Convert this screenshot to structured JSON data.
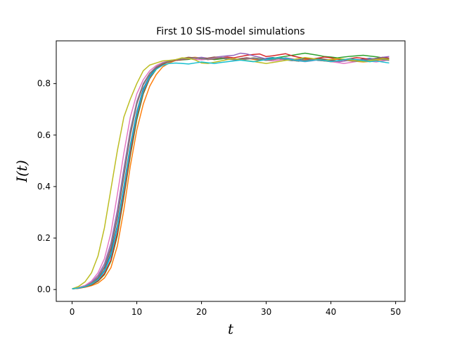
{
  "chart_data": {
    "type": "line",
    "title": "First 10 SIS-model simulations",
    "xlabel": "t",
    "ylabel": "I(t)",
    "xlim": [
      -2.45,
      51.45
    ],
    "ylim": [
      -0.046,
      0.966
    ],
    "xticks": [
      0,
      10,
      20,
      30,
      40,
      50
    ],
    "xtick_labels": [
      "0",
      "10",
      "20",
      "30",
      "40",
      "50"
    ],
    "yticks": [
      0.0,
      0.2,
      0.4,
      0.6,
      0.8
    ],
    "ytick_labels": [
      "0.0",
      "0.2",
      "0.4",
      "0.6",
      "0.8"
    ],
    "grid": false,
    "legend": "none",
    "x": [
      0,
      1,
      2,
      3,
      4,
      5,
      6,
      7,
      8,
      9,
      10,
      11,
      12,
      13,
      14,
      15,
      16,
      17,
      18,
      19,
      20,
      21,
      22,
      23,
      24,
      25,
      26,
      27,
      28,
      29,
      30,
      31,
      32,
      33,
      34,
      35,
      36,
      37,
      38,
      39,
      40,
      41,
      42,
      43,
      44,
      45,
      46,
      47,
      48,
      49
    ],
    "series": [
      {
        "color": "#1f77b4",
        "values": [
          0.003,
          0.006,
          0.012,
          0.022,
          0.04,
          0.075,
          0.14,
          0.25,
          0.4,
          0.56,
          0.69,
          0.78,
          0.83,
          0.86,
          0.875,
          0.885,
          0.89,
          0.893,
          0.895,
          0.897,
          0.9,
          0.898,
          0.902,
          0.899,
          0.895,
          0.893,
          0.897,
          0.9,
          0.896,
          0.894,
          0.898,
          0.901,
          0.897,
          0.892,
          0.889,
          0.893,
          0.897,
          0.895,
          0.89,
          0.888,
          0.892,
          0.896,
          0.893,
          0.889,
          0.891,
          0.895,
          0.898,
          0.894,
          0.892,
          0.896
        ]
      },
      {
        "color": "#ff7f0e",
        "values": [
          0.003,
          0.005,
          0.009,
          0.015,
          0.025,
          0.045,
          0.085,
          0.17,
          0.31,
          0.48,
          0.62,
          0.72,
          0.79,
          0.835,
          0.865,
          0.88,
          0.89,
          0.895,
          0.9,
          0.902,
          0.899,
          0.895,
          0.898,
          0.902,
          0.897,
          0.893,
          0.896,
          0.899,
          0.894,
          0.89,
          0.893,
          0.897,
          0.9,
          0.896,
          0.892,
          0.889,
          0.893,
          0.896,
          0.892,
          0.888,
          0.891,
          0.895,
          0.892,
          0.888,
          0.886,
          0.884,
          0.886,
          0.89,
          0.893,
          0.891
        ]
      },
      {
        "color": "#2ca02c",
        "values": [
          0.003,
          0.005,
          0.01,
          0.018,
          0.032,
          0.058,
          0.11,
          0.21,
          0.36,
          0.52,
          0.66,
          0.76,
          0.82,
          0.855,
          0.875,
          0.885,
          0.89,
          0.892,
          0.894,
          0.898,
          0.901,
          0.897,
          0.893,
          0.896,
          0.899,
          0.895,
          0.892,
          0.896,
          0.9,
          0.897,
          0.894,
          0.898,
          0.902,
          0.906,
          0.91,
          0.914,
          0.918,
          0.914,
          0.91,
          0.905,
          0.903,
          0.9,
          0.903,
          0.906,
          0.908,
          0.91,
          0.907,
          0.904,
          0.9,
          0.898
        ]
      },
      {
        "color": "#d62728",
        "values": [
          0.003,
          0.005,
          0.01,
          0.019,
          0.034,
          0.062,
          0.115,
          0.22,
          0.37,
          0.53,
          0.67,
          0.765,
          0.822,
          0.857,
          0.876,
          0.886,
          0.89,
          0.893,
          0.896,
          0.899,
          0.897,
          0.893,
          0.896,
          0.9,
          0.903,
          0.9,
          0.905,
          0.91,
          0.913,
          0.915,
          0.905,
          0.908,
          0.912,
          0.916,
          0.908,
          0.902,
          0.898,
          0.895,
          0.899,
          0.903,
          0.9,
          0.896,
          0.893,
          0.897,
          0.901,
          0.898,
          0.894,
          0.898,
          0.902,
          0.899
        ]
      },
      {
        "color": "#9467bd",
        "values": [
          0.003,
          0.007,
          0.014,
          0.028,
          0.055,
          0.1,
          0.18,
          0.31,
          0.47,
          0.62,
          0.73,
          0.8,
          0.84,
          0.865,
          0.88,
          0.888,
          0.893,
          0.895,
          0.897,
          0.899,
          0.902,
          0.898,
          0.902,
          0.905,
          0.908,
          0.91,
          0.918,
          0.915,
          0.908,
          0.902,
          0.896,
          0.893,
          0.897,
          0.9,
          0.896,
          0.892,
          0.888,
          0.891,
          0.895,
          0.892,
          0.888,
          0.884,
          0.887,
          0.891,
          0.894,
          0.891,
          0.895,
          0.898,
          0.902,
          0.905
        ]
      },
      {
        "color": "#8c564b",
        "values": [
          0.003,
          0.006,
          0.012,
          0.024,
          0.045,
          0.085,
          0.155,
          0.28,
          0.44,
          0.6,
          0.72,
          0.795,
          0.838,
          0.863,
          0.878,
          0.887,
          0.893,
          0.898,
          0.902,
          0.9,
          0.896,
          0.899,
          0.903,
          0.9,
          0.897,
          0.893,
          0.896,
          0.9,
          0.897,
          0.893,
          0.89,
          0.894,
          0.898,
          0.895,
          0.891,
          0.887,
          0.89,
          0.894,
          0.898,
          0.895,
          0.891,
          0.888,
          0.892,
          0.896,
          0.893,
          0.89,
          0.893,
          0.897,
          0.9,
          0.897
        ]
      },
      {
        "color": "#e377c2",
        "values": [
          0.003,
          0.008,
          0.016,
          0.033,
          0.065,
          0.12,
          0.22,
          0.37,
          0.53,
          0.67,
          0.76,
          0.815,
          0.85,
          0.87,
          0.882,
          0.889,
          0.893,
          0.896,
          0.898,
          0.895,
          0.892,
          0.895,
          0.899,
          0.902,
          0.898,
          0.895,
          0.892,
          0.896,
          0.899,
          0.895,
          0.891,
          0.888,
          0.891,
          0.895,
          0.892,
          0.888,
          0.885,
          0.888,
          0.892,
          0.889,
          0.885,
          0.882,
          0.878,
          0.882,
          0.886,
          0.89,
          0.887,
          0.884,
          0.888,
          0.892
        ]
      },
      {
        "color": "#7f7f7f",
        "values": [
          0.003,
          0.006,
          0.013,
          0.025,
          0.048,
          0.09,
          0.165,
          0.29,
          0.45,
          0.61,
          0.725,
          0.798,
          0.84,
          0.864,
          0.879,
          0.887,
          0.892,
          0.895,
          0.897,
          0.9,
          0.897,
          0.894,
          0.897,
          0.901,
          0.898,
          0.894,
          0.891,
          0.895,
          0.898,
          0.894,
          0.89,
          0.893,
          0.897,
          0.894,
          0.89,
          0.887,
          0.89,
          0.894,
          0.891,
          0.888,
          0.885,
          0.888,
          0.892,
          0.889,
          0.886,
          0.889,
          0.893,
          0.896,
          0.893,
          0.89
        ]
      },
      {
        "color": "#bcbd22",
        "values": [
          0.003,
          0.012,
          0.03,
          0.065,
          0.13,
          0.24,
          0.39,
          0.54,
          0.67,
          0.74,
          0.8,
          0.85,
          0.872,
          0.88,
          0.888,
          0.89,
          0.893,
          0.9,
          0.898,
          0.892,
          0.88,
          0.878,
          0.883,
          0.888,
          0.893,
          0.897,
          0.893,
          0.889,
          0.886,
          0.882,
          0.878,
          0.882,
          0.886,
          0.89,
          0.893,
          0.897,
          0.901,
          0.898,
          0.894,
          0.89,
          0.894,
          0.898,
          0.895,
          0.891,
          0.888,
          0.885,
          0.889,
          0.893,
          0.897,
          0.894
        ]
      },
      {
        "color": "#17becf",
        "values": [
          0.003,
          0.006,
          0.011,
          0.021,
          0.038,
          0.07,
          0.13,
          0.24,
          0.39,
          0.55,
          0.68,
          0.772,
          0.826,
          0.856,
          0.871,
          0.878,
          0.88,
          0.878,
          0.876,
          0.88,
          0.884,
          0.881,
          0.878,
          0.882,
          0.885,
          0.888,
          0.891,
          0.888,
          0.885,
          0.889,
          0.893,
          0.897,
          0.901,
          0.897,
          0.893,
          0.889,
          0.886,
          0.889,
          0.893,
          0.89,
          0.886,
          0.889,
          0.893,
          0.896,
          0.893,
          0.889,
          0.885,
          0.888,
          0.884,
          0.88
        ]
      }
    ]
  }
}
